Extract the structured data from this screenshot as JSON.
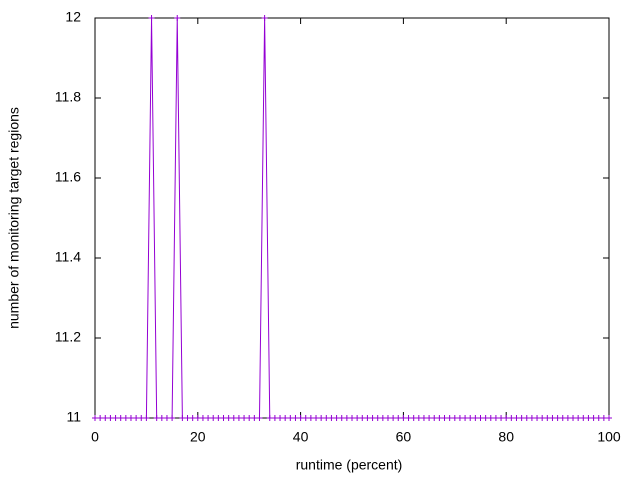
{
  "chart_data": {
    "type": "line",
    "xlabel": "runtime (percent)",
    "ylabel": "number of monitoring target regions",
    "xlim": [
      0,
      100
    ],
    "xticks": [
      0,
      20,
      40,
      60,
      80,
      100
    ],
    "ylim": [
      11,
      12
    ],
    "yticks": [
      11,
      11.2,
      11.4,
      11.6,
      11.8,
      12
    ],
    "grid": false,
    "series": [
      {
        "color": "#9400d3",
        "x": [
          0,
          1,
          2,
          3,
          4,
          5,
          6,
          7,
          8,
          9,
          10,
          11,
          12,
          13,
          14,
          15,
          16,
          17,
          18,
          19,
          20,
          21,
          22,
          23,
          24,
          25,
          26,
          27,
          28,
          29,
          30,
          31,
          32,
          33,
          34,
          35,
          36,
          37,
          38,
          39,
          40,
          41,
          42,
          43,
          44,
          45,
          46,
          47,
          48,
          49,
          50,
          51,
          52,
          53,
          54,
          55,
          56,
          57,
          58,
          59,
          60,
          61,
          62,
          63,
          64,
          65,
          66,
          67,
          68,
          69,
          70,
          71,
          72,
          73,
          74,
          75,
          76,
          77,
          78,
          79,
          80,
          81,
          82,
          83,
          84,
          85,
          86,
          87,
          88,
          89,
          90,
          91,
          92,
          93,
          94,
          95,
          96,
          97,
          98,
          99,
          100
        ],
        "values": [
          11,
          11,
          11,
          11,
          11,
          11,
          11,
          11,
          11,
          11,
          11,
          12,
          11,
          11,
          11,
          11,
          12,
          11,
          11,
          11,
          11,
          11,
          11,
          11,
          11,
          11,
          11,
          11,
          11,
          11,
          11,
          11,
          11,
          12,
          11,
          11,
          11,
          11,
          11,
          11,
          11,
          11,
          11,
          11,
          11,
          11,
          11,
          11,
          11,
          11,
          11,
          11,
          11,
          11,
          11,
          11,
          11,
          11,
          11,
          11,
          11,
          11,
          11,
          11,
          11,
          11,
          11,
          11,
          11,
          11,
          11,
          11,
          11,
          11,
          11,
          11,
          11,
          11,
          11,
          11,
          11,
          11,
          11,
          11,
          11,
          11,
          11,
          11,
          11,
          11,
          11,
          11,
          11,
          11,
          11,
          11,
          11,
          11,
          11,
          11,
          11
        ]
      }
    ]
  }
}
